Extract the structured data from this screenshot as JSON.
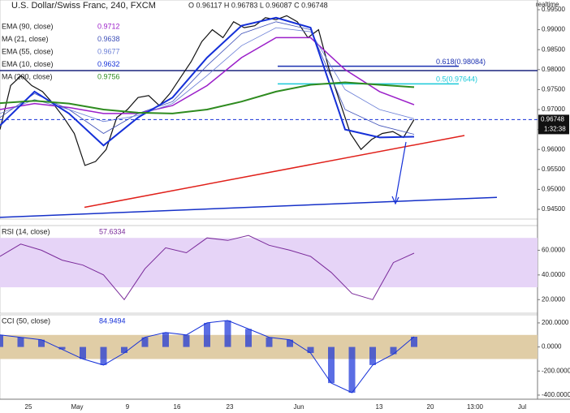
{
  "chart_data": {
    "type": "line",
    "title": "U.S. Dollar/Swiss Franc, 240, FXCM",
    "ohlc_text": "O 0.96117 H 0.96783 L 0.96087 C 0.96748",
    "status": "realtime",
    "last_price": {
      "value": 0.96748,
      "label": "0.96748"
    },
    "countdown": "1:32:38",
    "x_labels": [
      "25",
      "May",
      "9",
      "16",
      "23",
      "Jun",
      "13",
      "20",
      "13:00",
      "Jul"
    ],
    "ylim": [
      0.94256,
      0.99744
    ],
    "yticks": [
      {
        "value": 0.995,
        "label": "0.99500"
      },
      {
        "value": 0.99,
        "label": "0.99000"
      },
      {
        "value": 0.985,
        "label": "0.98500"
      },
      {
        "value": 0.98,
        "label": "0.98000"
      },
      {
        "value": 0.975,
        "label": "0.97500"
      },
      {
        "value": 0.97,
        "label": "0.97000"
      },
      {
        "value": 0.965,
        "label": "0.96500"
      },
      {
        "value": 0.96,
        "label": "0.96000"
      },
      {
        "value": 0.955,
        "label": "0.95500"
      },
      {
        "value": 0.95,
        "label": "0.95000"
      },
      {
        "value": 0.945,
        "label": "0.94500"
      }
    ],
    "series": [
      {
        "name": "Price",
        "color": "#111111",
        "width": 1.2,
        "values": [
          0.965,
          0.976,
          0.9785,
          0.976,
          0.9745,
          0.9715,
          0.968,
          0.964,
          0.956,
          0.957,
          0.96,
          0.968,
          0.97,
          0.973,
          0.9735,
          0.971,
          0.974,
          0.978,
          0.982,
          0.987,
          0.99,
          0.988,
          0.992,
          0.9905,
          0.991,
          0.993,
          0.9925,
          0.9935,
          0.992,
          0.988,
          0.99,
          0.98,
          0.972,
          0.964,
          0.96,
          0.9625,
          0.964,
          0.9645,
          0.963,
          0.9675
        ]
      },
      {
        "name": "EMA (90, close)",
        "value_label": "0.9712",
        "color": "#9b1fc9",
        "width": 1.5,
        "values": [
          0.97,
          0.9715,
          0.9705,
          0.969,
          0.969,
          0.971,
          0.976,
          0.983,
          0.988,
          0.988,
          0.98,
          0.9745,
          0.9712
        ]
      },
      {
        "name": "MA (21, close)",
        "value_label": "0.9638",
        "color": "#3d4fb8",
        "width": 0.8,
        "values": [
          0.968,
          0.974,
          0.97,
          0.964,
          0.969,
          0.972,
          0.981,
          0.989,
          0.992,
          0.99,
          0.97,
          0.966,
          0.9638
        ]
      },
      {
        "name": "EMA (55, close)",
        "value_label": "0.9677",
        "color": "#6b7fd6",
        "width": 0.8,
        "values": [
          0.969,
          0.9725,
          0.97,
          0.967,
          0.9685,
          0.9715,
          0.9785,
          0.986,
          0.9905,
          0.9895,
          0.975,
          0.97,
          0.9677
        ]
      },
      {
        "name": "EMA (10, close)",
        "value_label": "0.9632",
        "color": "#1530d8",
        "width": 2,
        "values": [
          0.966,
          0.9745,
          0.969,
          0.961,
          0.968,
          0.973,
          0.983,
          0.991,
          0.993,
          0.9905,
          0.965,
          0.963,
          0.9632
        ]
      },
      {
        "name": "MA (200, close)",
        "value_label": "0.9756",
        "color": "#2e8b1f",
        "width": 2,
        "values": [
          0.9716,
          0.9722,
          0.9715,
          0.97,
          0.9692,
          0.969,
          0.97,
          0.972,
          0.9745,
          0.9762,
          0.9768,
          0.9762,
          0.9756
        ]
      }
    ],
    "fib_levels": [
      {
        "value": 0.98084,
        "label": "0.618(0.98084)",
        "color": "#1a2fb0"
      },
      {
        "value": 0.97644,
        "label": "0.5(0.97644)",
        "color": "#1ac9d9"
      }
    ],
    "resistance": 0.97975,
    "trendlines": [
      {
        "color": "#e0201a",
        "values": [
          0.9455,
          0.9635
        ]
      },
      {
        "color": "#1530c8",
        "values": [
          0.943,
          0.948
        ]
      }
    ],
    "rsi": {
      "title": "RSI (14, close)",
      "value_label": "57.6334",
      "color": "#7a2a9a",
      "ylim": [
        9,
        80
      ],
      "band": [
        30,
        70
      ],
      "yticks": [
        {
          "value": 60,
          "label": "60.0000"
        },
        {
          "value": 40,
          "label": "40.0000"
        },
        {
          "value": 20,
          "label": "20.0000"
        }
      ],
      "values": [
        55,
        65,
        60,
        52,
        48,
        40,
        20,
        45,
        62,
        58,
        70,
        68,
        72,
        64,
        60,
        55,
        42,
        25,
        20,
        50,
        57.6334
      ]
    },
    "cci": {
      "title": "CCI (50, close)",
      "value_label": "84.9494",
      "color": "#1530d8",
      "ylim": [
        -434,
        267
      ],
      "band": [
        -100,
        100
      ],
      "yticks": [
        {
          "value": 200,
          "label": "200.0000"
        },
        {
          "value": 0,
          "label": "0.0000"
        },
        {
          "value": -200,
          "label": "-200.0000"
        },
        {
          "value": -400,
          "label": "-400.0000"
        }
      ],
      "values": [
        100,
        80,
        60,
        -20,
        -100,
        -150,
        -50,
        80,
        120,
        100,
        200,
        220,
        150,
        80,
        60,
        -50,
        -300,
        -380,
        -150,
        -60,
        84.9494
      ]
    }
  }
}
